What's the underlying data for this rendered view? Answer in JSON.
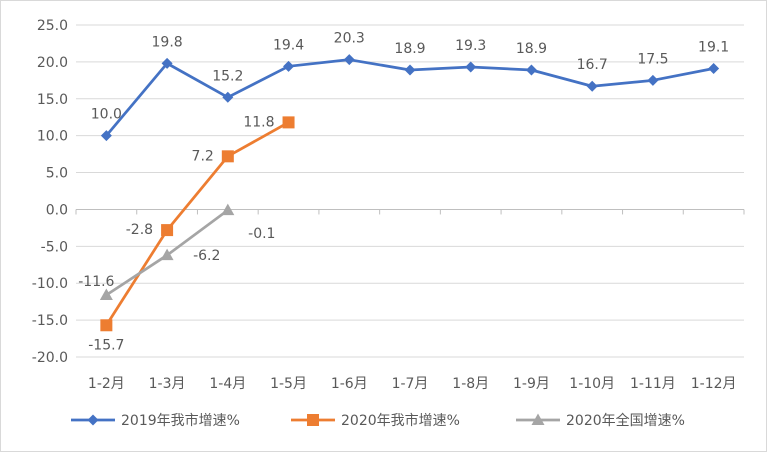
{
  "chart_data": {
    "type": "line",
    "title": "",
    "xlabel": "",
    "ylabel": "",
    "categories": [
      "1-2月",
      "1-3月",
      "1-4月",
      "1-5月",
      "1-6月",
      "1-7月",
      "1-8月",
      "1-9月",
      "1-10月",
      "1-11月",
      "1-12月"
    ],
    "y_ticks": [
      "25.0",
      "20.0",
      "15.0",
      "10.0",
      "5.0",
      "0.0",
      "-5.0",
      "-10.0",
      "-15.0",
      "-20.0"
    ],
    "ylim": [
      -20,
      25
    ],
    "y_step": 5,
    "grid": "horizontal",
    "legend_position": "bottom",
    "series": [
      {
        "name": "2019年我市增速%",
        "color": "#4472c4",
        "marker": "diamond",
        "values": [
          10.0,
          19.8,
          15.2,
          19.4,
          20.3,
          18.9,
          19.3,
          18.9,
          16.7,
          17.5,
          19.1
        ],
        "labels": [
          "10.0",
          "19.8",
          "15.2",
          "19.4",
          "20.3",
          "18.9",
          "19.3",
          "18.9",
          "16.7",
          "17.5",
          "19.1"
        ]
      },
      {
        "name": "2020年我市增速%",
        "color": "#ed7d31",
        "marker": "square",
        "values": [
          -15.7,
          -2.8,
          7.2,
          11.8,
          null,
          null,
          null,
          null,
          null,
          null,
          null
        ],
        "labels": [
          "-15.7",
          "-2.8",
          "7.2",
          "11.8",
          "",
          "",
          "",
          "",
          "",
          "",
          ""
        ]
      },
      {
        "name": "2020年全国增速%",
        "color": "#a5a5a5",
        "marker": "triangle",
        "values": [
          -11.6,
          -6.2,
          -0.1,
          null,
          null,
          null,
          null,
          null,
          null,
          null,
          null
        ],
        "labels": [
          "-11.6",
          "-6.2",
          "-0.1",
          "",
          "",
          "",
          "",
          "",
          "",
          "",
          ""
        ]
      }
    ]
  }
}
